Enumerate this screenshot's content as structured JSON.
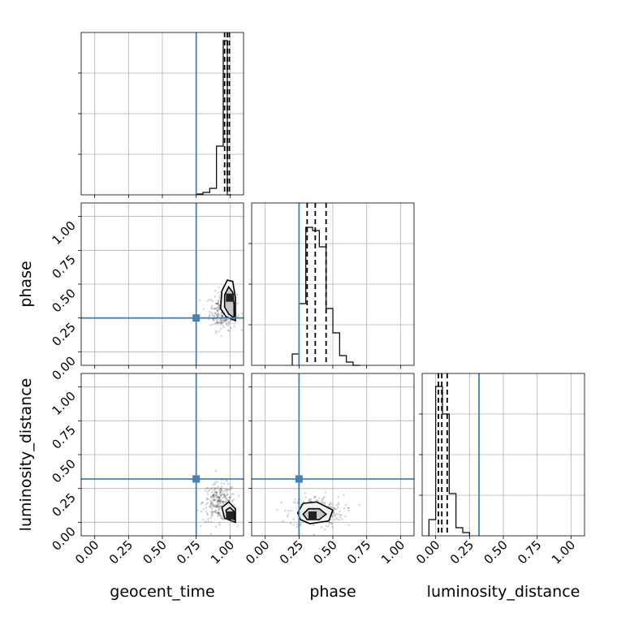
{
  "colors": {
    "truth": "#4682b4",
    "ink": "#000000",
    "grid": "#b0b0b0",
    "contour_fill_outer": "#f0f0f0",
    "contour_fill_inner": "#c8c8c8",
    "core": "#222222"
  },
  "chart_data": {
    "type": "corner",
    "parameters": [
      "geocent_time",
      "phase",
      "luminosity_distance"
    ],
    "tick_labels": [
      "0.00",
      "0.25",
      "0.50",
      "0.75",
      "1.00"
    ],
    "tick_values": [
      0.0,
      0.25,
      0.5,
      0.75,
      1.0
    ],
    "axis_range": [
      -0.1,
      1.1
    ],
    "truths": {
      "geocent_time": 0.75,
      "phase": 0.25,
      "luminosity_distance": 0.32
    },
    "quantiles": {
      "geocent_time": [
        0.96,
        0.98,
        0.995
      ],
      "phase": [
        0.31,
        0.37,
        0.45
      ],
      "luminosity_distance": [
        0.02,
        0.045,
        0.085
      ]
    },
    "histograms": {
      "geocent_time": {
        "edges": [
          0.75,
          0.8,
          0.85,
          0.9,
          0.95,
          0.98,
          1.01
        ],
        "heights": [
          0.005,
          0.015,
          0.04,
          0.3,
          0.95,
          0.0
        ]
      },
      "phase": {
        "edges": [
          0.2,
          0.25,
          0.3,
          0.35,
          0.4,
          0.45,
          0.5,
          0.55,
          0.6,
          0.65,
          0.7
        ],
        "heights": [
          0.07,
          0.38,
          0.85,
          0.83,
          0.73,
          0.35,
          0.2,
          0.06,
          0.02,
          0.0
        ]
      },
      "luminosity_distance": {
        "edges": [
          -0.05,
          0.0,
          0.05,
          0.1,
          0.15,
          0.2,
          0.25
        ],
        "heights": [
          0.1,
          0.92,
          0.75,
          0.26,
          0.05,
          0.02
        ]
      }
    },
    "pairs": [
      {
        "x": "geocent_time",
        "y": "phase",
        "core": [
          1.0,
          0.4
        ],
        "contour_inner": [
          [
            1.03,
            0.25
          ],
          [
            0.99,
            0.28
          ],
          [
            0.96,
            0.33
          ],
          [
            0.96,
            0.42
          ],
          [
            0.99,
            0.48
          ],
          [
            1.02,
            0.44
          ],
          [
            1.03,
            0.35
          ]
        ],
        "contour_outer": [
          [
            1.04,
            0.23
          ],
          [
            0.97,
            0.26
          ],
          [
            0.93,
            0.32
          ],
          [
            0.94,
            0.45
          ],
          [
            0.98,
            0.53
          ],
          [
            1.02,
            0.52
          ],
          [
            1.04,
            0.4
          ]
        ],
        "scatter_center": [
          0.95,
          0.3
        ],
        "scatter_spread": [
          0.05,
          0.07
        ]
      },
      {
        "x": "geocent_time",
        "y": "luminosity_distance",
        "core": [
          1.0,
          0.05
        ],
        "contour_inner": [
          [
            1.03,
            0.02
          ],
          [
            0.98,
            0.04
          ],
          [
            0.97,
            0.09
          ],
          [
            1.0,
            0.11
          ],
          [
            1.03,
            0.08
          ]
        ],
        "contour_outer": [
          [
            1.04,
            0.0
          ],
          [
            0.96,
            0.03
          ],
          [
            0.94,
            0.11
          ],
          [
            0.99,
            0.15
          ],
          [
            1.04,
            0.1
          ]
        ],
        "scatter_center": [
          0.92,
          0.15
        ],
        "scatter_spread": [
          0.06,
          0.07
        ]
      },
      {
        "x": "phase",
        "y": "luminosity_distance",
        "core": [
          0.35,
          0.05
        ],
        "contour_inner": [
          [
            0.28,
            0.06
          ],
          [
            0.32,
            0.1
          ],
          [
            0.4,
            0.1
          ],
          [
            0.45,
            0.06
          ],
          [
            0.4,
            0.02
          ],
          [
            0.31,
            0.02
          ]
        ],
        "contour_outer": [
          [
            0.24,
            0.07
          ],
          [
            0.28,
            0.14
          ],
          [
            0.38,
            0.15
          ],
          [
            0.5,
            0.09
          ],
          [
            0.47,
            0.01
          ],
          [
            0.33,
            -0.01
          ],
          [
            0.26,
            0.02
          ]
        ],
        "scatter_center": [
          0.38,
          0.08
        ],
        "scatter_spread": [
          0.1,
          0.06
        ]
      }
    ],
    "xlabels": {
      "0": "geocent_time",
      "1": "phase",
      "2": "luminosity_distance"
    },
    "ylabels": {
      "1": "phase",
      "2": "luminosity_distance"
    }
  }
}
